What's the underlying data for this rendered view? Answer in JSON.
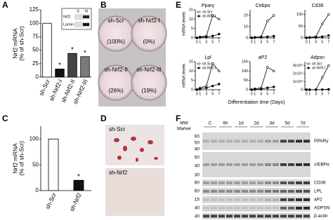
{
  "chart_data": [
    {
      "type": "bar",
      "panel": "A",
      "ylabel": [
        "Nrf2 mRNA",
        "(% of sh-Scr)"
      ],
      "categories": [
        "sh-Scr",
        "sh-Nrf2-I",
        "sh-Nrf2-II",
        "sh-Nrf2-III"
      ],
      "values": [
        100,
        15,
        44,
        38
      ],
      "colors": [
        "#ffffff",
        "#111111",
        "#444444",
        "#7a7a7a"
      ],
      "annotations": [
        null,
        "*",
        "*",
        "*"
      ],
      "ylim": [
        0,
        125
      ],
      "yticks": [
        0,
        25,
        50,
        75,
        100,
        125
      ]
    },
    {
      "type": "bar",
      "panel": "C",
      "ylabel": [
        "Nrf2 mRNA",
        "(% of sh-Scr)"
      ],
      "categories": [
        "sh-Scr",
        "sh-Nrf2"
      ],
      "values": [
        100,
        20
      ],
      "colors": [
        "#ffffff",
        "#111111"
      ],
      "annotations": [
        null,
        "*"
      ],
      "ylim": [
        0,
        125
      ],
      "yticks": [
        0,
        50,
        100
      ]
    },
    {
      "type": "line",
      "title": "Pparγ",
      "legend": true,
      "x": [
        0,
        1,
        3,
        5,
        7
      ],
      "xlim": [
        -0.5,
        7.5
      ],
      "xticks": [
        0,
        1,
        3,
        5,
        7
      ],
      "ylim": [
        0,
        15
      ],
      "yticks": [
        0,
        5,
        10,
        15
      ],
      "series": [
        {
          "name": "sh-Scr",
          "color": "#ffffff",
          "values": [
            0,
            0.5,
            1,
            12,
            10
          ]
        },
        {
          "name": "sh-Nrf2-I",
          "color": "#000000",
          "values": [
            0,
            0.3,
            0.5,
            1,
            2
          ]
        }
      ]
    },
    {
      "type": "line",
      "title": "Cebpα",
      "legend": false,
      "x": [
        0,
        1,
        3,
        5,
        7
      ],
      "xlim": [
        -0.5,
        7.5
      ],
      "xticks": [
        0,
        1,
        3,
        5,
        7
      ],
      "ylim": [
        0,
        25
      ],
      "yticks": [
        0,
        10,
        20
      ],
      "series": [
        {
          "name": "sh-Scr",
          "color": "#ffffff",
          "values": [
            0,
            0.5,
            1,
            15,
            20
          ]
        },
        {
          "name": "sh-Nrf2-I",
          "color": "#000000",
          "values": [
            0,
            0.3,
            0.5,
            1,
            1.5
          ]
        }
      ]
    },
    {
      "type": "line",
      "title": "Cd36",
      "legend": false,
      "x": [
        0,
        1,
        3,
        5,
        7
      ],
      "xlim": [
        -0.5,
        7.5
      ],
      "xticks": [
        0,
        1,
        3,
        5,
        7
      ],
      "ylim": [
        0,
        120
      ],
      "yticks": [
        0,
        50,
        100
      ],
      "series": [
        {
          "name": "sh-Scr",
          "color": "#ffffff",
          "values": [
            0,
            2,
            5,
            60,
            100
          ]
        },
        {
          "name": "sh-Nrf2-I",
          "color": "#000000",
          "values": [
            0,
            1,
            2,
            5,
            10
          ]
        }
      ]
    },
    {
      "type": "line",
      "title": "Lpl",
      "legend": true,
      "x": [
        0,
        1,
        3,
        5,
        7
      ],
      "xlim": [
        -0.5,
        7.5
      ],
      "xticks": [
        0,
        1,
        3,
        5,
        7
      ],
      "ylim": [
        0,
        15
      ],
      "yticks": [
        0,
        5,
        10,
        15
      ],
      "series": [
        {
          "name": "sh-Scr",
          "color": "#ffffff",
          "values": [
            0,
            1,
            2,
            14,
            10
          ]
        },
        {
          "name": "sh-Nrf2-I",
          "color": "#000000",
          "values": [
            0,
            0.5,
            1,
            2,
            3
          ]
        }
      ]
    },
    {
      "type": "line",
      "title": "aP2",
      "legend": false,
      "x": [
        0,
        1,
        3,
        5,
        7
      ],
      "xlim": [
        -0.5,
        7.5
      ],
      "xticks": [
        0,
        1,
        3,
        5,
        7
      ],
      "ylim": [
        0,
        150
      ],
      "yticks": [
        0,
        50,
        100,
        150
      ],
      "series": [
        {
          "name": "sh-Scr",
          "color": "#ffffff",
          "values": [
            0,
            5,
            10,
            120,
            100
          ]
        },
        {
          "name": "sh-Nrf2-I",
          "color": "#000000",
          "values": [
            0,
            2,
            4,
            10,
            15
          ]
        }
      ]
    },
    {
      "type": "line",
      "title": "Adpsn",
      "legend": true,
      "x": [
        0,
        1,
        3,
        5,
        7
      ],
      "xlim": [
        -0.5,
        7.5
      ],
      "xticks": [
        0,
        1,
        3,
        5,
        7
      ],
      "ylim": [
        0,
        35000
      ],
      "yticks": [
        0,
        {
          "value": 10000,
          "label": "1x10⁴"
        },
        {
          "value": 20000,
          "label": "2x10⁴"
        },
        {
          "value": 30000,
          "label": "3x10⁴"
        }
      ],
      "series": [
        {
          "name": "sh-Scr",
          "color": "#ffffff",
          "values": [
            0,
            0,
            100,
            15000,
            30000
          ]
        },
        {
          "name": "sh-Nrf2-I",
          "color": "#000000",
          "values": [
            0,
            0,
            0,
            200,
            500
          ]
        }
      ]
    }
  ],
  "panel_A": {
    "label": "A",
    "inset": {
      "bands": [
        "Nrf2",
        "Lamin A"
      ],
      "columns": [
        "S",
        "N"
      ]
    }
  },
  "panel_B": {
    "label": "B",
    "plates": [
      {
        "name": "sh-Scr",
        "value": "(100%)"
      },
      {
        "name": "sh-Nrf2-I",
        "value": "(0%)"
      },
      {
        "name": "sh-Nrf2-II",
        "value": "(26%)"
      },
      {
        "name": "sh-Nrf2-III",
        "value": "(19%)"
      }
    ]
  },
  "panel_C": {
    "label": "C"
  },
  "panel_D": {
    "label": "D",
    "images": [
      "sh-Scr",
      "sh-Nrf2"
    ]
  },
  "panel_E": {
    "label": "E",
    "ylabel": "mRNA levels",
    "xlabel": "Differentiation time (Days)"
  },
  "panel_F": {
    "label": "F",
    "header": [
      "MW",
      "Marker"
    ],
    "lanes": [
      "C",
      "6h",
      "1d",
      "2d",
      "3d",
      "5d",
      "7d"
    ],
    "blocks": [
      {
        "label": "PPARγ",
        "mw": [
          "60",
          "50",
          "40"
        ]
      },
      {
        "label": "c/EBPα",
        "mw": [
          "50",
          "40",
          "30"
        ]
      },
      {
        "label": "CD36",
        "mw": [
          "80"
        ]
      },
      {
        "label": "LPL",
        "mw": [
          "60"
        ]
      },
      {
        "label": "aP2",
        "mw": [
          "15"
        ]
      },
      {
        "label": "ADPSN",
        "mw": [
          "40"
        ]
      },
      {
        "label": "β-actin",
        "mw": [
          "40"
        ]
      }
    ]
  }
}
